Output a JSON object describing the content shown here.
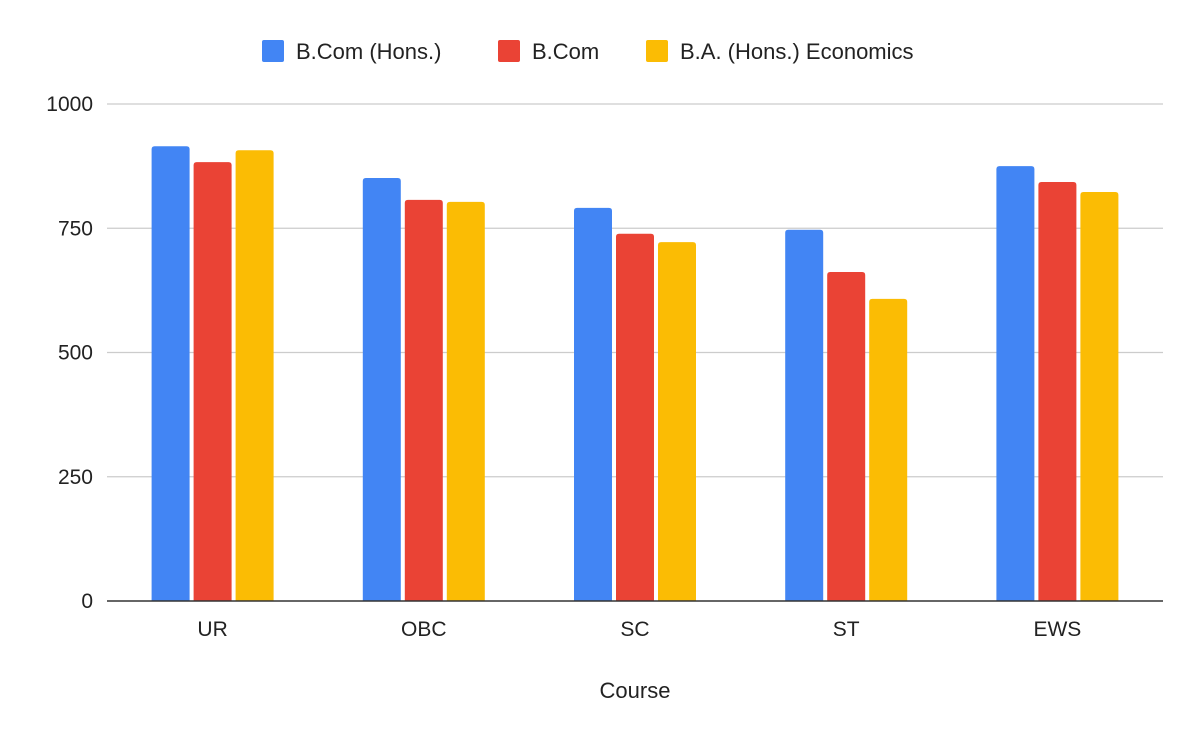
{
  "chart_data": {
    "type": "bar",
    "title": "",
    "xlabel": "Course",
    "ylabel": "",
    "categories": [
      "UR",
      "OBC",
      "SC",
      "ST",
      "EWS"
    ],
    "series": [
      {
        "name": "B.Com (Hons.)",
        "color": "#4285f4",
        "values": [
          915,
          851,
          791,
          747,
          875
        ]
      },
      {
        "name": "B.Com",
        "color": "#ea4335",
        "values": [
          883,
          807,
          739,
          662,
          843
        ]
      },
      {
        "name": "B.A. (Hons.) Economics",
        "color": "#fbbc04",
        "values": [
          907,
          803,
          722,
          608,
          823
        ]
      }
    ],
    "ylim": [
      0,
      1000
    ],
    "yticks": [
      0,
      250,
      500,
      750,
      1000
    ],
    "ytick_labels": [
      "0",
      "250",
      "500",
      "750",
      "1000"
    ],
    "grid": true,
    "legend_position": "top-center"
  }
}
